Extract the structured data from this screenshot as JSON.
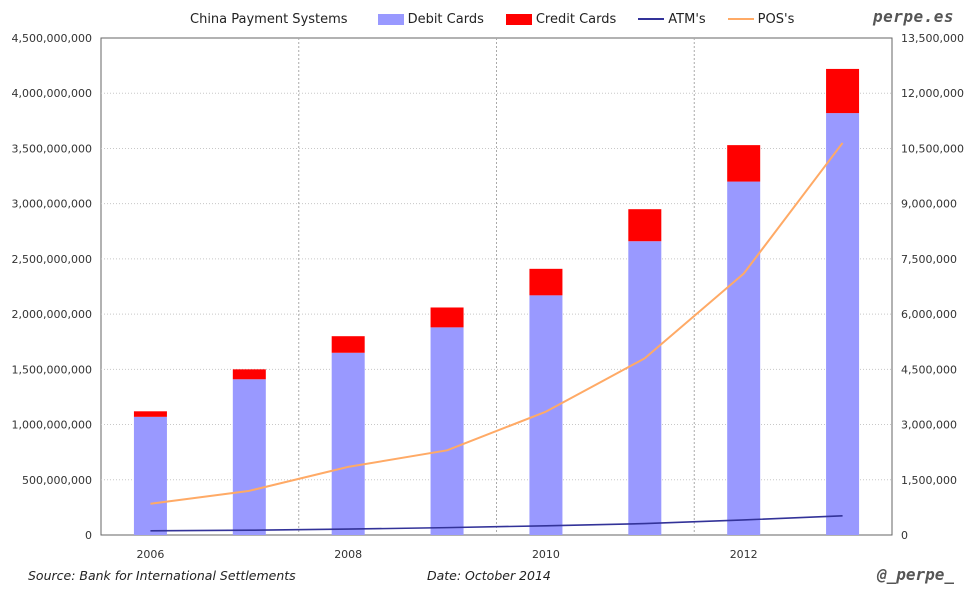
{
  "chart_data": {
    "type": "bar",
    "title": "China Payment Systems",
    "x": [
      2006,
      2007,
      2008,
      2009,
      2010,
      2011,
      2012,
      2013
    ],
    "x_tick_labels": [
      "2006",
      "2008",
      "2010",
      "2012"
    ],
    "series": [
      {
        "name": "Debit Cards",
        "kind": "stacked-bar",
        "axis": "left",
        "color": "#9999ff",
        "values": [
          1070000000,
          1410000000,
          1650000000,
          1880000000,
          2170000000,
          2660000000,
          3200000000,
          3820000000
        ]
      },
      {
        "name": "Credit Cards",
        "kind": "stacked-bar",
        "axis": "left",
        "color": "#ff0000",
        "values": [
          50000000,
          90000000,
          150000000,
          180000000,
          240000000,
          290000000,
          330000000,
          400000000
        ]
      },
      {
        "name": "ATM's",
        "kind": "line",
        "axis": "right",
        "color": "#333399",
        "values": [
          115000,
          130000,
          160000,
          200000,
          250000,
          310000,
          410000,
          520000
        ]
      },
      {
        "name": "POS's",
        "kind": "line",
        "axis": "right",
        "color": "#ffaa66",
        "values": [
          850000,
          1200000,
          1850000,
          2300000,
          3350000,
          4800000,
          7100000,
          10650000
        ]
      }
    ],
    "y_left": {
      "min": 0,
      "max": 4500000000,
      "tick_labels": [
        "0",
        "500,000,000",
        "1,000,000,000",
        "1,500,000,000",
        "2,000,000,000",
        "2,500,000,000",
        "3,000,000,000",
        "3,500,000,000",
        "4,000,000,000",
        "4,500,000,000"
      ]
    },
    "y_right": {
      "min": 0,
      "max": 13500000,
      "tick_labels": [
        "0",
        "1,500,000",
        "3,000,000",
        "4,500,000",
        "6,000,000",
        "7,500,000",
        "9,000,000",
        "10,500,000",
        "12,000,000",
        "13,500,000"
      ]
    },
    "grid": true,
    "legend_position": "top"
  },
  "legend": {
    "title": "China Payment Systems",
    "debit": "Debit Cards",
    "credit": "Credit Cards",
    "atm": "ATM's",
    "pos": "POS's"
  },
  "brand": "perpe.es",
  "footer": {
    "source": "Source: Bank for International Settlements",
    "date": "Date: October 2014",
    "handle": "@_perpe_"
  },
  "colors": {
    "debit": "#9999ff",
    "credit": "#ff0000",
    "atm": "#333399",
    "pos": "#ffaa66"
  }
}
